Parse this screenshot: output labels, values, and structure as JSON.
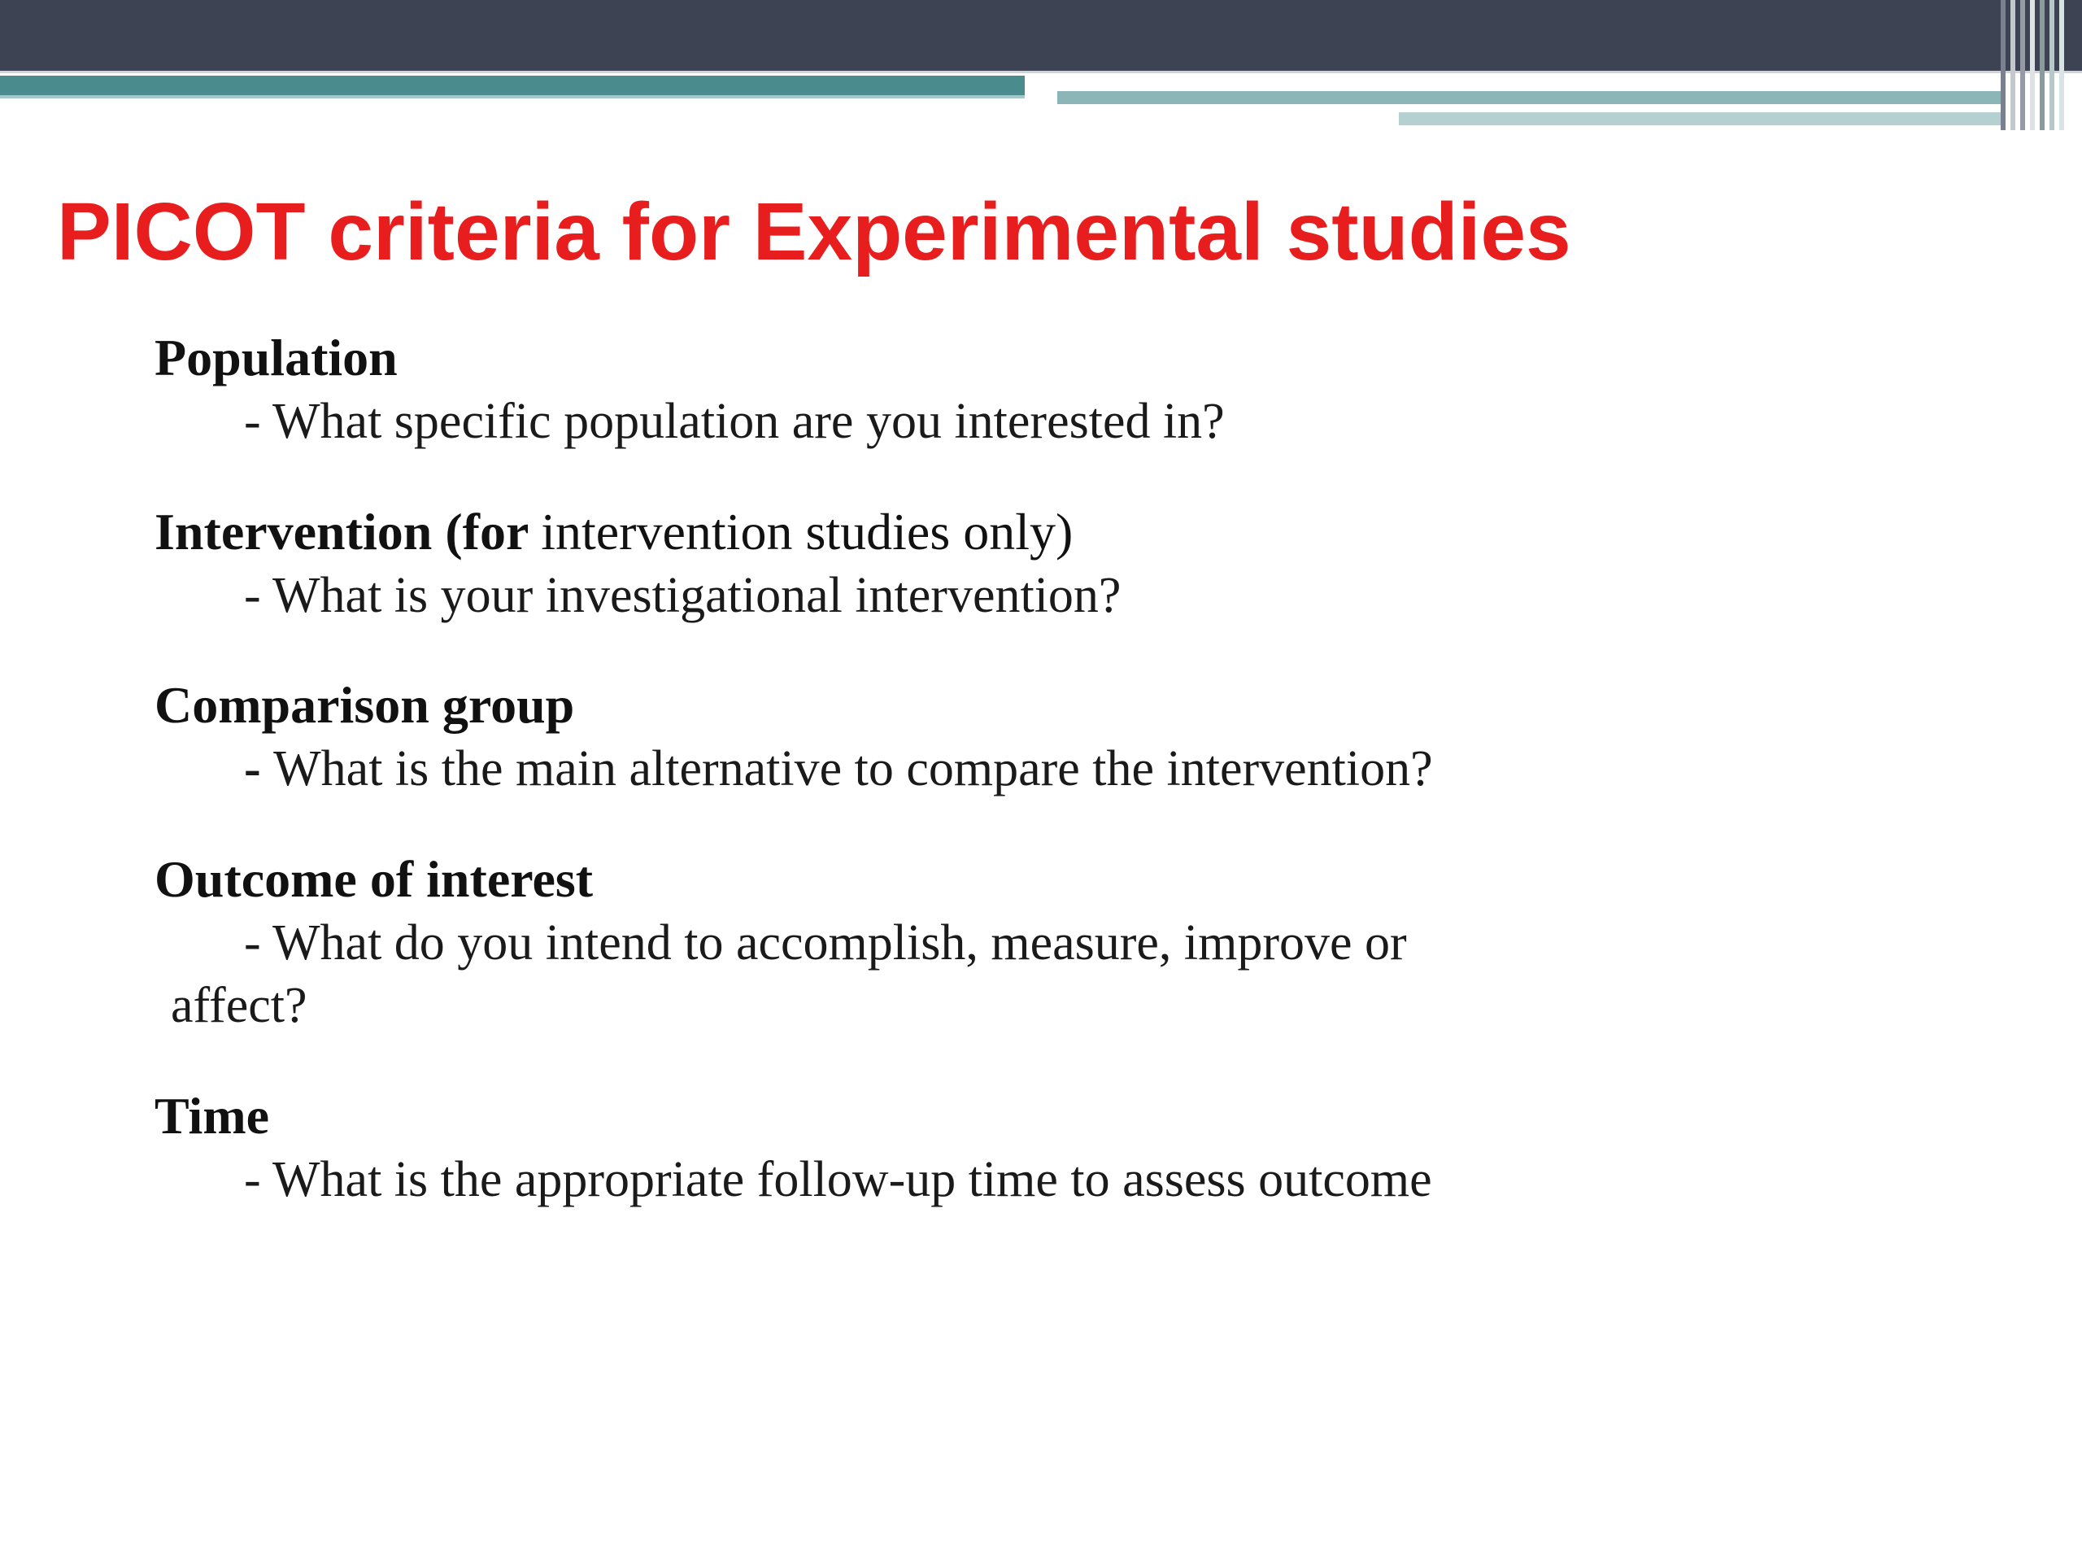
{
  "colors": {
    "title_color": "#e81e1e",
    "top_band": "#3d4352",
    "teal_primary": "#4a8c8e",
    "teal_light": "#8bb5b6",
    "teal_lighter": "#b5d0d0",
    "text_color": "#111111",
    "background": "#ffffff"
  },
  "typography": {
    "title_font": "Segoe UI",
    "body_font": "Georgia",
    "title_size_pt": 44,
    "heading_size_pt": 28,
    "body_size_pt": 28
  },
  "title": "PICOT criteria for Experimental studies",
  "criteria": [
    {
      "heading_bold": "Population",
      "heading_normal": "",
      "desc_prefix": "- ",
      "desc": "What specific population are you interested in?",
      "desc_continue": ""
    },
    {
      "heading_bold": "Intervention (for ",
      "heading_normal": "intervention studies only)",
      "desc_prefix": "-  ",
      "desc": "What is your investigational intervention?",
      "desc_continue": ""
    },
    {
      "heading_bold": "Comparison group",
      "heading_normal": "",
      "desc_prefix": "- ",
      "desc": "What is the main alternative to compare the intervention?",
      "desc_continue": ""
    },
    {
      "heading_bold": "Outcome of interest",
      "heading_normal": "",
      "desc_prefix": "- ",
      "desc": "What do you intend to accomplish, measure, improve or",
      "desc_continue": "affect?"
    },
    {
      "heading_bold": "Time",
      "heading_normal": "",
      "desc_prefix": "- ",
      "desc": "What is the appropriate follow-up time  to assess outcome",
      "desc_continue": ""
    }
  ]
}
